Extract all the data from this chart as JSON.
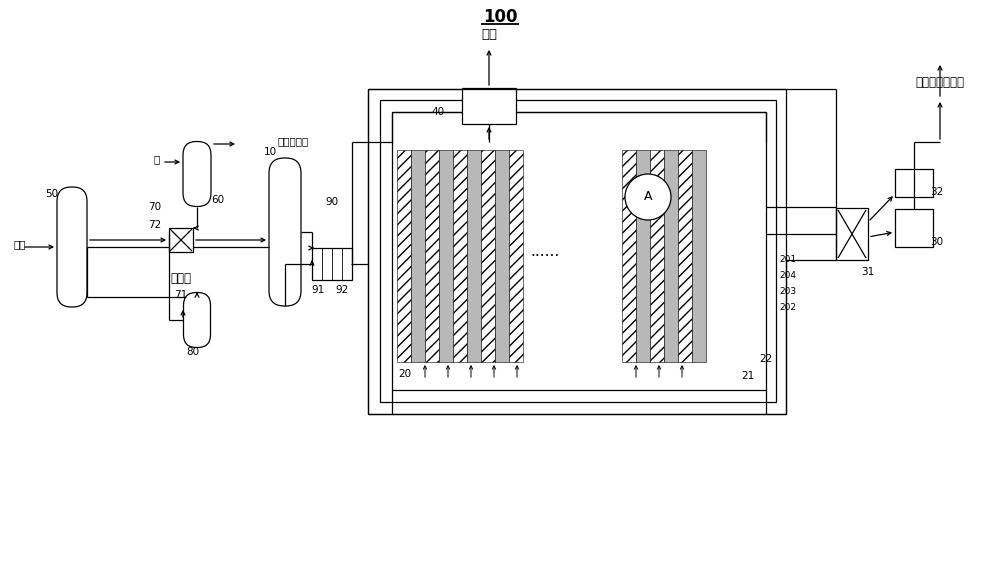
{
  "bg": "#ffffff",
  "lc": "#000000",
  "title": "100",
  "t_yanqi": "烟气",
  "t_shui": "水",
  "t_paifang": "待排放气体",
  "t_liyongwu": "利用物",
  "t_qingqi": "氢气",
  "t_eryang": "二氧化碗，氧气",
  "t_A": "A",
  "t_dots": "......",
  "n50": "50",
  "n60": "60",
  "n70": "70",
  "n71": "71",
  "n72": "72",
  "n80": "80",
  "n10": "10",
  "n90": "90",
  "n91": "91",
  "n92": "92",
  "n20": "20",
  "n21": "21",
  "n22": "22",
  "n201": "201",
  "n202": "202",
  "n203": "203",
  "n204": "204",
  "n30": "30",
  "n31": "31",
  "n32": "32",
  "n40": "40"
}
